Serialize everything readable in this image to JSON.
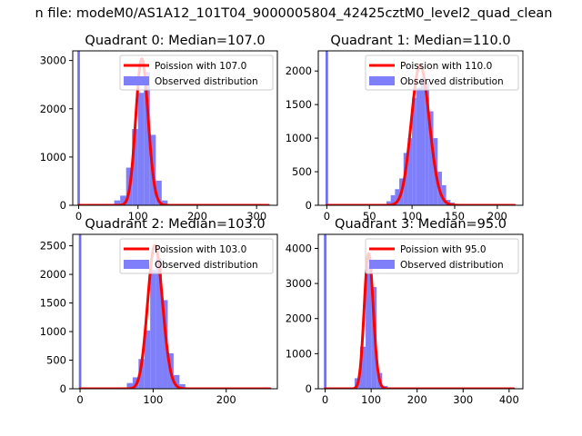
{
  "figure_title": "n file: modeM0/AS1A12_101T04_9000005804_42425cztM0_level2_quad_clean",
  "colors": {
    "hist": "#7f7ff9",
    "hist_spike": "#7070ee",
    "poisson": "#ff0000",
    "axes": "#000000",
    "background": "#ffffff"
  },
  "chart_data": [
    {
      "type": "bar+line",
      "title": "Quadrant 0: Median=107.0",
      "median": 107.0,
      "xlim": [
        -10,
        335
      ],
      "ylim": [
        0,
        3200
      ],
      "xticks": [
        0,
        100,
        200,
        300
      ],
      "yticks": [
        0,
        1000,
        2000,
        3000
      ],
      "legend": {
        "location": "top-right",
        "entries": [
          "Poission with 107.0",
          "Observed distribution"
        ]
      },
      "spike": {
        "x": 0,
        "value": 3200
      },
      "bins": {
        "width": 10,
        "x": [
          60,
          70,
          80,
          90,
          100,
          110,
          120,
          130,
          140
        ],
        "values": [
          100,
          200,
          780,
          1580,
          2330,
          2760,
          1460,
          510,
          100
        ]
      },
      "poisson": {
        "mean": 107.0,
        "xmin": 0,
        "xmax": 320
      }
    },
    {
      "type": "bar+line",
      "title": "Quadrant 1: Median=110.0",
      "median": 110.0,
      "xlim": [
        -10,
        230
      ],
      "ylim": [
        0,
        2300
      ],
      "xticks": [
        0,
        50,
        100,
        150,
        200
      ],
      "yticks": [
        0,
        500,
        1000,
        1500,
        2000
      ],
      "legend": {
        "location": "top-right",
        "entries": [
          "Poission with 110.0",
          "Observed distribution"
        ]
      },
      "spike": {
        "x": 0,
        "value": 2300
      },
      "bins": {
        "width": 5,
        "x": [
          70,
          75,
          80,
          85,
          90,
          95,
          100,
          105,
          110,
          115,
          120,
          125,
          130,
          135,
          140,
          145
        ],
        "values": [
          60,
          150,
          240,
          400,
          780,
          1000,
          1600,
          1750,
          1900,
          1850,
          1400,
          1000,
          500,
          300,
          80,
          40
        ]
      },
      "poisson": {
        "mean": 110.0,
        "xmin": 0,
        "xmax": 220
      }
    },
    {
      "type": "bar+line",
      "title": "Quadrant 2: Median=103.0",
      "median": 103.0,
      "xlim": [
        -10,
        270
      ],
      "ylim": [
        0,
        2700
      ],
      "xticks": [
        0,
        100,
        200
      ],
      "yticks": [
        0,
        500,
        1000,
        1500,
        2000,
        2500
      ],
      "legend": {
        "location": "top-right",
        "entries": [
          "Poission with 103.0",
          "Observed distribution"
        ]
      },
      "spike": {
        "x": 0,
        "value": 2700
      },
      "bins": {
        "width": 8,
        "x": [
          64,
          72,
          80,
          88,
          96,
          104,
          112,
          120,
          128,
          136
        ],
        "values": [
          100,
          200,
          520,
          1020,
          2080,
          2280,
          1550,
          620,
          240,
          80
        ]
      },
      "poisson": {
        "mean": 103.0,
        "xmin": 0,
        "xmax": 260
      }
    },
    {
      "type": "bar+line",
      "title": "Quadrant 3: Median=95.0",
      "median": 95.0,
      "xlim": [
        -15,
        430
      ],
      "ylim": [
        0,
        4400
      ],
      "xticks": [
        0,
        100,
        200,
        300,
        400
      ],
      "yticks": [
        0,
        1000,
        2000,
        3000,
        4000
      ],
      "legend": {
        "location": "top-right",
        "entries": [
          "Poission with 95.0",
          "Observed distribution"
        ]
      },
      "spike": {
        "x": 0,
        "value": 4400
      },
      "bins": {
        "width": 12,
        "x": [
          64,
          76,
          88,
          100,
          112,
          124
        ],
        "values": [
          300,
          1200,
          3500,
          2900,
          450,
          80
        ]
      },
      "poisson": {
        "mean": 95.0,
        "xmin": 0,
        "xmax": 410
      }
    }
  ]
}
